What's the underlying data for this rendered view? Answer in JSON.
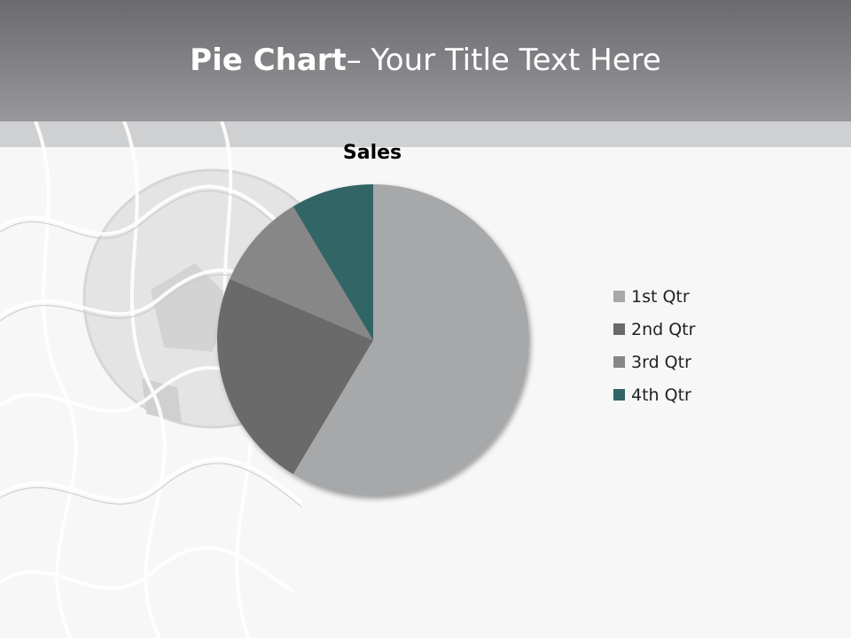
{
  "slide": {
    "title_bold": "Pie Chart",
    "title_rest": "– Your Title Text Here"
  },
  "chart_data": {
    "type": "pie",
    "title": "Sales",
    "categories": [
      "1st Qtr",
      "2nd Qtr",
      "3rd Qtr",
      "4th Qtr"
    ],
    "values": [
      8.2,
      3.2,
      1.4,
      1.2
    ],
    "colors": [
      "#a7a8aa",
      "#6a6a6a",
      "#878787",
      "#336566"
    ],
    "start_angle_deg": 0,
    "direction": "clockwise",
    "legend_position": "right"
  }
}
